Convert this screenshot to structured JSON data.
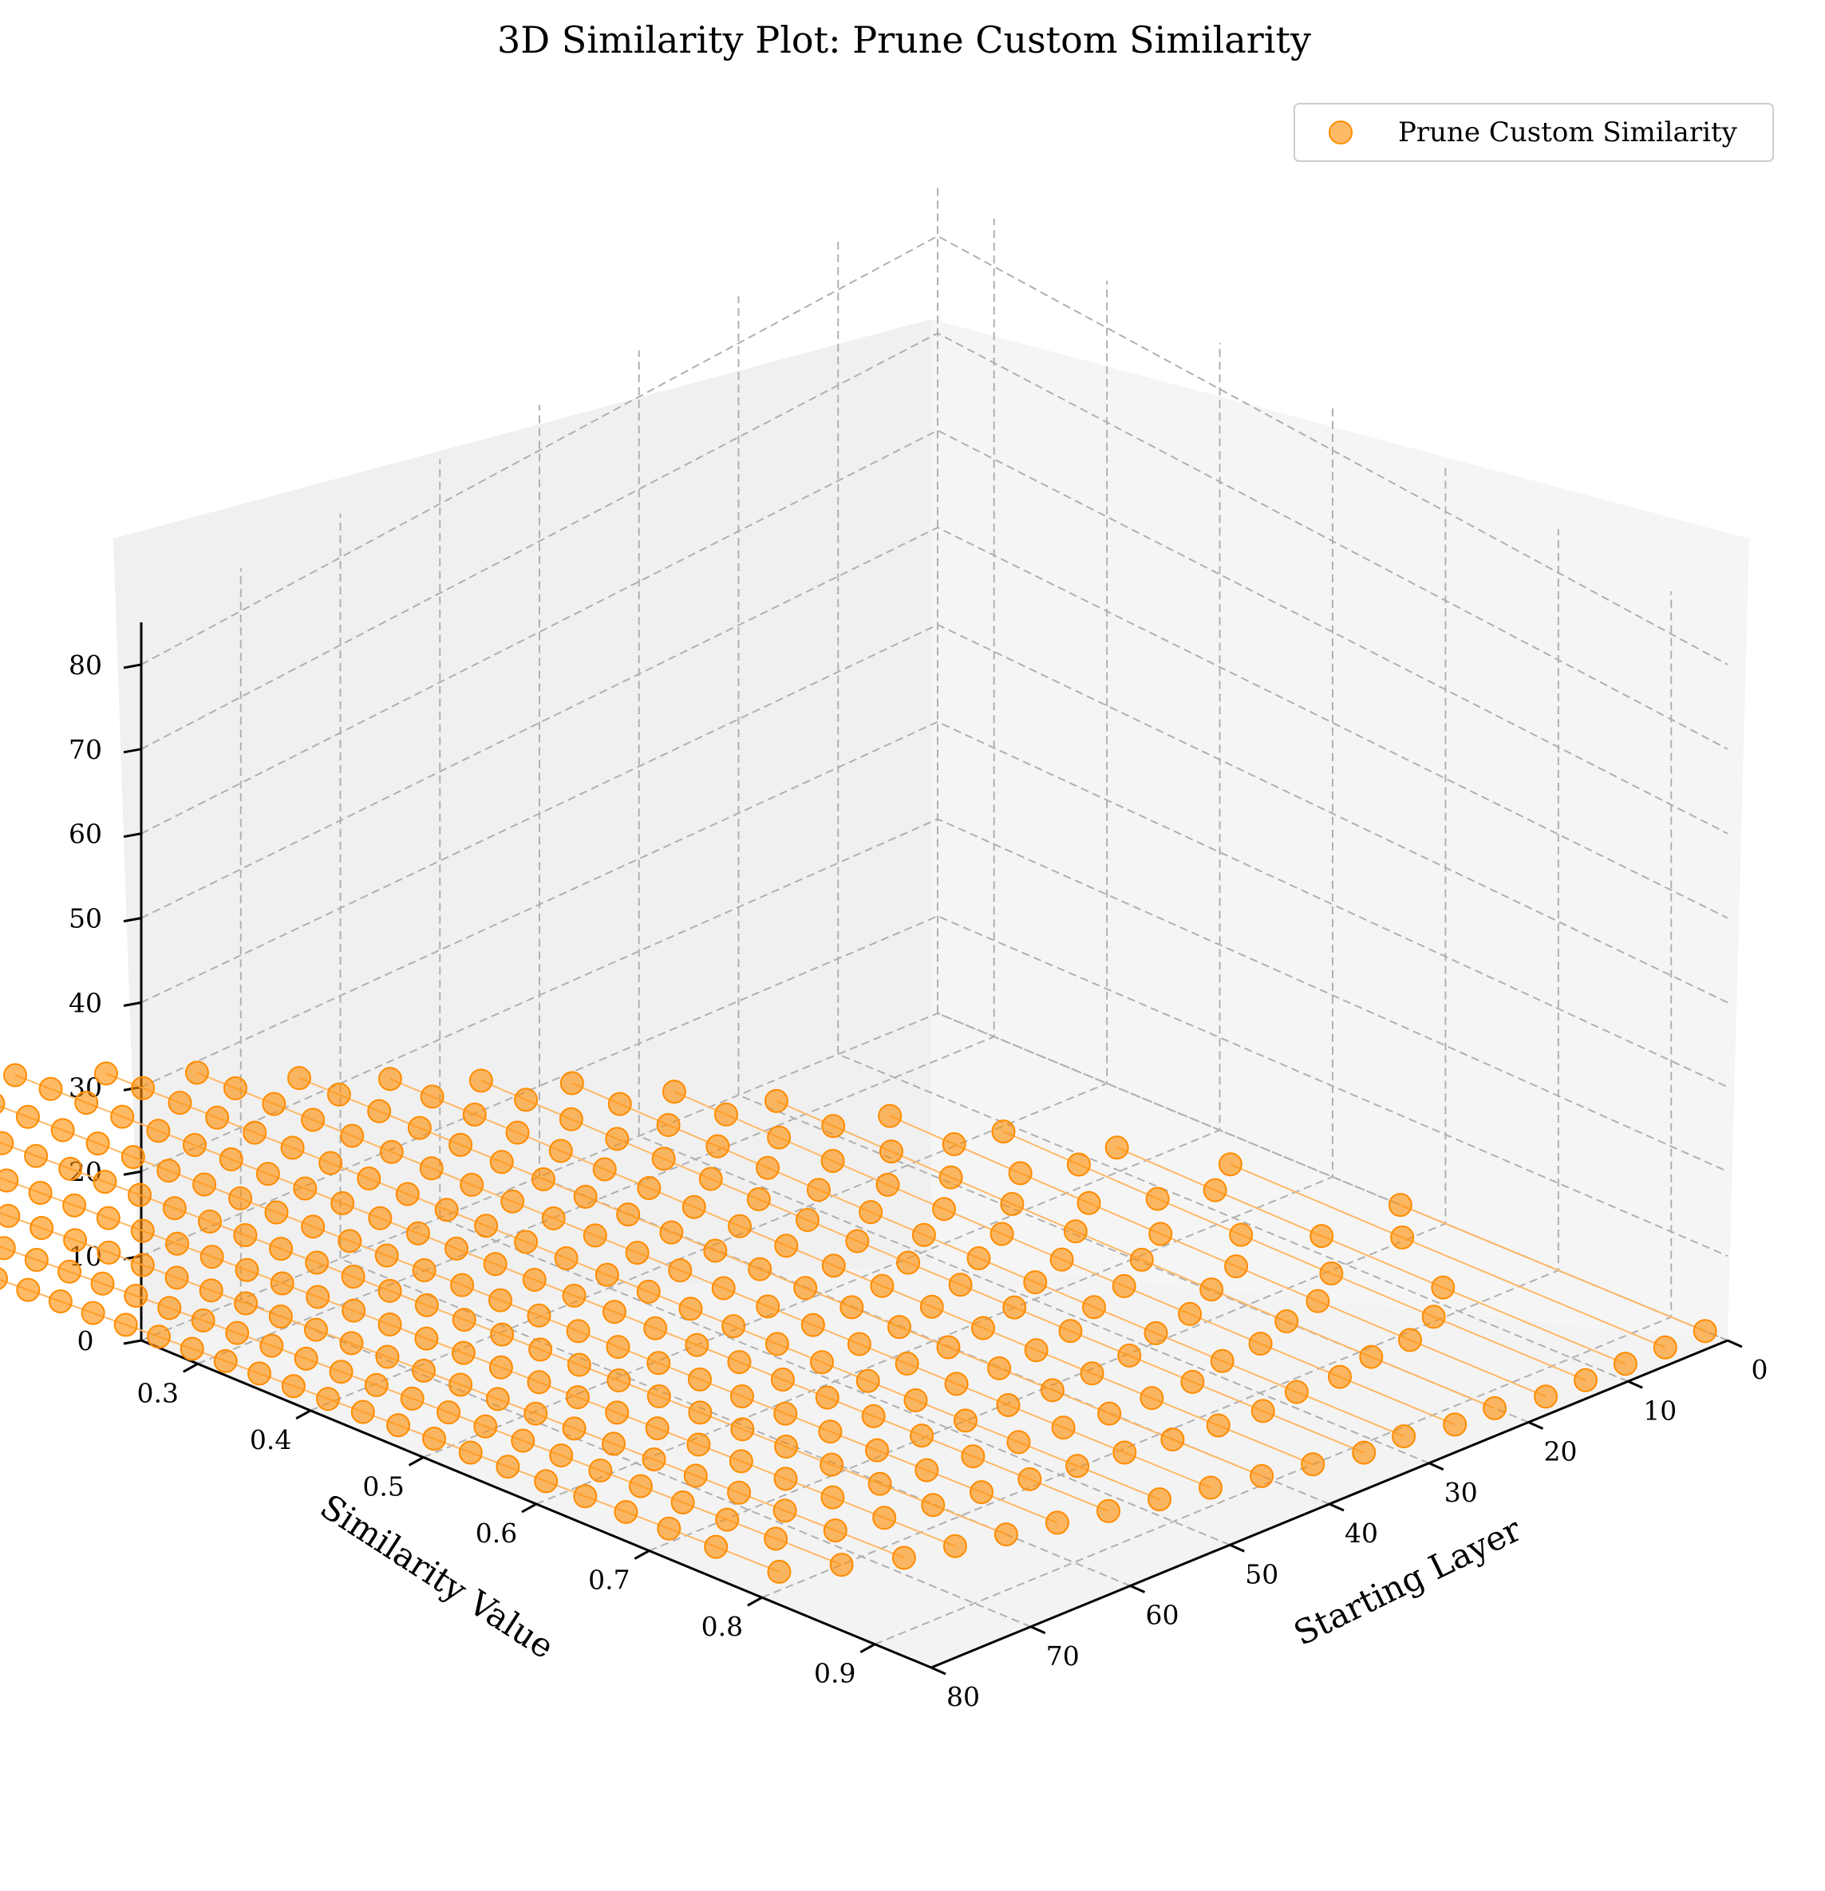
{
  "chart_data": {
    "type": "scatter",
    "projection": "3d",
    "title": "3D Similarity Plot: Prune Custom Similarity",
    "xlabel": "Starting Layer",
    "ylabel": "Similarity Value",
    "zlabel": "",
    "xlim": [
      0,
      80
    ],
    "ylim": [
      0.25,
      0.95
    ],
    "zlim": [
      0,
      85
    ],
    "x_ticks": [
      "0",
      "10",
      "20",
      "30",
      "40",
      "50",
      "60",
      "70",
      "80"
    ],
    "y_ticks": [
      "0.3",
      "0.4",
      "0.5",
      "0.6",
      "0.7",
      "0.8",
      "0.9"
    ],
    "z_ticks": [
      "0",
      "10",
      "20",
      "30",
      "40",
      "50",
      "60",
      "70",
      "80"
    ],
    "grid": true,
    "legend_position": "top-right",
    "marker_color": "#ff8c00",
    "line_color": "#ffb866",
    "series": [
      {
        "name": "Prune Custom Similarity",
        "description_of_points": "one point per (starting layer, pruned block) pair; points linked by thin lines",
        "x": [
          0,
          4,
          8,
          12,
          16,
          20,
          24,
          28,
          32,
          36,
          40,
          44,
          48,
          52,
          56,
          60,
          64,
          68,
          72,
          76
        ],
        "y_min": [
          0.66,
          0.58,
          0.55,
          0.52,
          0.49,
          0.46,
          0.44,
          0.42,
          0.41,
          0.4,
          0.39,
          0.37,
          0.36,
          0.35,
          0.34,
          0.33,
          0.32,
          0.31,
          0.3,
          0.29
        ],
        "y_max": [
          0.93,
          0.93,
          0.93,
          0.93,
          0.93,
          0.92,
          0.92,
          0.91,
          0.91,
          0.9,
          0.89,
          0.88,
          0.87,
          0.86,
          0.85,
          0.84,
          0.83,
          0.82,
          0.8,
          0.78
        ],
        "z_max": [
          0,
          4,
          8,
          12,
          16,
          20,
          24,
          28,
          32,
          36,
          40,
          44,
          48,
          52,
          56,
          60,
          64,
          68,
          72,
          76
        ]
      }
    ]
  }
}
